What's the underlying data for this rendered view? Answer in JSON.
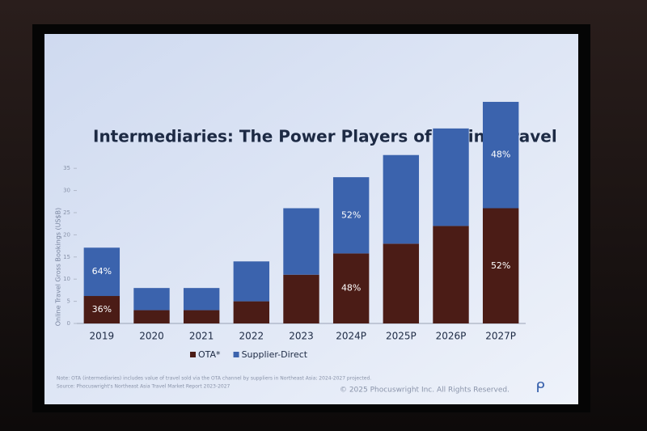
{
  "chart_data": {
    "type": "stacked_bar",
    "title": "Intermediaries: The Power Players of Online Travel",
    "y_label": "Online Travel Gross Bookings (US$B)",
    "categories": [
      "2019",
      "2020",
      "2021",
      "2022",
      "2023",
      "2024P",
      "2025P",
      "2026P",
      "2027P"
    ],
    "series": [
      {
        "name": "OTA*",
        "color": "#4b1c16",
        "values": [
          6.2,
          3,
          3,
          5,
          11,
          15.8,
          18,
          22,
          26
        ],
        "labels": [
          "36%",
          null,
          null,
          null,
          null,
          "48%",
          null,
          null,
          "52%"
        ]
      },
      {
        "name": "Supplier-Direct",
        "color": "#3b63ad",
        "values": [
          10.9,
          5,
          5,
          9,
          15,
          17.2,
          20,
          22,
          24
        ],
        "labels": [
          "64%",
          null,
          null,
          null,
          null,
          "52%",
          null,
          null,
          "48%"
        ]
      }
    ],
    "ylim": [
      0,
      52
    ],
    "yticks": [
      0,
      5,
      10,
      15,
      20,
      25,
      30,
      35
    ],
    "grid": false,
    "legend": "bottom",
    "note": "Note: OTA (intermediaries) includes value of travel sold via the OTA channel by suppliers in Northeast Asia; 2024-2027 projected.",
    "source": "Source: Phocuswright's Northeast Asia Travel Market Report 2023-2027",
    "copyright": "© 2025 Phocuswright Inc. All Rights Reserved."
  }
}
